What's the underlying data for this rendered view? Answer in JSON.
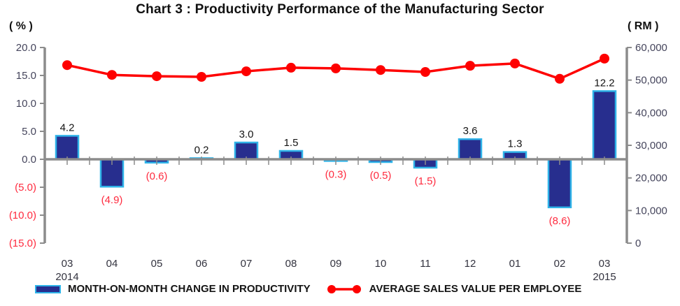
{
  "colors": {
    "bar_fill": "#272E8E",
    "bar_border": "#2FB3E8",
    "line": "#FE0000",
    "negative_label": "#FF2B3F",
    "axis": "#8C8C8C",
    "text_dark": "#141414",
    "tick_text": "#45455C",
    "month_text": "#33333F"
  },
  "chart_data": {
    "type": "combo-bar-line",
    "title": "Chart 3 : Productivity Performance of the Manufacturing Sector",
    "categories": [
      "03",
      "04",
      "05",
      "06",
      "07",
      "08",
      "09",
      "10",
      "11",
      "12",
      "01",
      "02",
      "03"
    ],
    "category_year_labels": [
      {
        "index": 0,
        "year": "2014"
      },
      {
        "index": 12,
        "year": "2015"
      }
    ],
    "series": [
      {
        "name": "MONTH-ON-MONTH CHANGE IN PRODUCTIVITY",
        "type": "bar",
        "axis": "left",
        "values": [
          4.2,
          -4.9,
          -0.6,
          0.2,
          3.0,
          1.5,
          -0.3,
          -0.5,
          -1.5,
          3.6,
          1.3,
          -8.6,
          12.2
        ],
        "labels": [
          "4.2",
          "(4.9)",
          "(0.6)",
          "0.2",
          "3.0",
          "1.5",
          "(0.3)",
          "(0.5)",
          "(1.5)",
          "3.6",
          "1.3",
          "(8.6)",
          "12.2"
        ]
      },
      {
        "name": "AVERAGE SALES VALUE PER EMPLOYEE",
        "type": "line",
        "axis": "right",
        "estimated": true,
        "values": [
          54600,
          51600,
          51200,
          51000,
          52700,
          53800,
          53600,
          53100,
          52500,
          54400,
          55100,
          50400,
          56600
        ]
      }
    ],
    "left_axis": {
      "unit": "( % )",
      "min": -15,
      "max": 20,
      "tick_step": 5,
      "tick_labels": [
        "20.0",
        "15.0",
        "10.0",
        "5.0",
        "0.0",
        "(5.0)",
        "(10.0)",
        "(15.0)"
      ]
    },
    "right_axis": {
      "unit": "( RM )",
      "min": 0,
      "max": 60000,
      "tick_step": 10000,
      "tick_labels": [
        "60,000",
        "50,000",
        "40,000",
        "30,000",
        "20,000",
        "10,000",
        "0"
      ]
    },
    "grid": "off",
    "legend_position": "bottom"
  }
}
